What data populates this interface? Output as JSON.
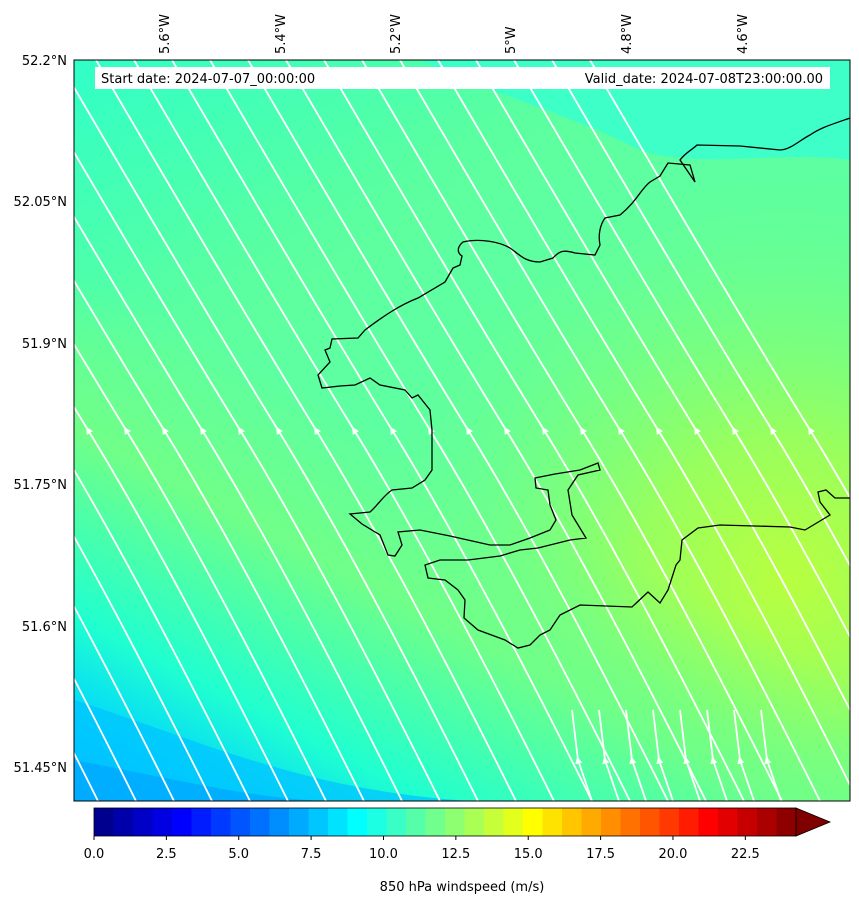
{
  "header": {
    "start_date": "Start date: 2024-07-07_00:00:00",
    "valid_date": "Valid_date: 2024-07-08T23:00:00.00"
  },
  "axes": {
    "lon_ticks": [
      "5.6°W",
      "5.4°W",
      "5.2°W",
      "5°W",
      "4.8°W",
      "4.6°W"
    ],
    "lat_ticks": [
      "52.2°N",
      "52.05°N",
      "51.9°N",
      "51.75°N",
      "51.6°N",
      "51.45°N"
    ]
  },
  "colorbar": {
    "label": "850 hPa windspeed (m/s)",
    "ticks": [
      "0.0",
      "2.5",
      "5.0",
      "7.5",
      "10.0",
      "12.5",
      "15.0",
      "17.5",
      "20.0",
      "22.5"
    ],
    "min": 0,
    "max": 25,
    "extend": "max",
    "colormap": "jet"
  },
  "map": {
    "field": "850 hPa windspeed",
    "units": "m/s",
    "lon_range": [
      -5.75,
      -4.45
    ],
    "lat_range": [
      51.43,
      52.2
    ],
    "streamline_color": "#ffffff",
    "coastline_color": "#000000"
  }
}
